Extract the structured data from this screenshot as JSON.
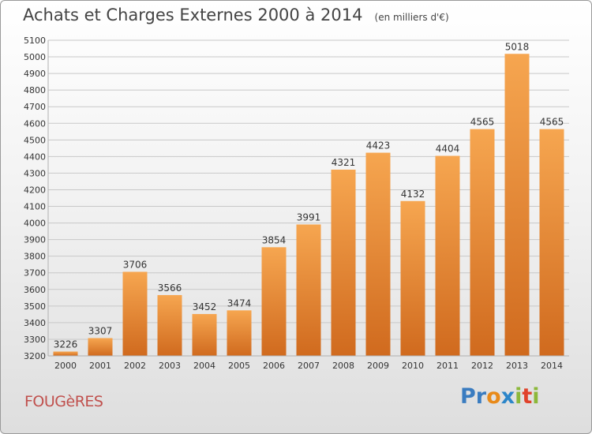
{
  "header": {
    "title": "Achats et Charges Externes 2000 à 2014",
    "unit": "(en milliers d'€)"
  },
  "footer": {
    "town": "FOUGèRES",
    "brand": "Proxiti",
    "brand_letters": [
      {
        "ch": "P",
        "color": "#3a7cc0"
      },
      {
        "ch": "r",
        "color": "#3a7cc0"
      },
      {
        "ch": "o",
        "color": "#e88a1a"
      },
      {
        "ch": "x",
        "color": "#2c86c9"
      },
      {
        "ch": "i",
        "color": "#8cb83a"
      },
      {
        "ch": "t",
        "color": "#e0432c"
      },
      {
        "ch": "i",
        "color": "#8cb83a"
      }
    ]
  },
  "colors": {
    "bar_light": "#f6a650",
    "bar_dark": "#d06a1e",
    "grid": "#c8c8c8",
    "axis_text": "#333333",
    "town": "#c0504d"
  },
  "chart_data": {
    "type": "bar",
    "categories": [
      "2000",
      "2001",
      "2002",
      "2003",
      "2004",
      "2005",
      "2006",
      "2007",
      "2008",
      "2009",
      "2010",
      "2011",
      "2012",
      "2013",
      "2014"
    ],
    "values": [
      3226,
      3307,
      3706,
      3566,
      3452,
      3474,
      3854,
      3991,
      4321,
      4423,
      4132,
      4404,
      4565,
      5018,
      4565
    ],
    "title": "Achats et Charges Externes 2000 à 2014",
    "subtitle": "(en milliers d'€)",
    "ylim": [
      3200,
      5100
    ],
    "yticks": [
      3200,
      3300,
      3400,
      3500,
      3600,
      3700,
      3800,
      3900,
      4000,
      4100,
      4200,
      4300,
      4400,
      4500,
      4600,
      4700,
      4800,
      4900,
      5000,
      5100
    ],
    "grid": true,
    "legend": "none"
  }
}
